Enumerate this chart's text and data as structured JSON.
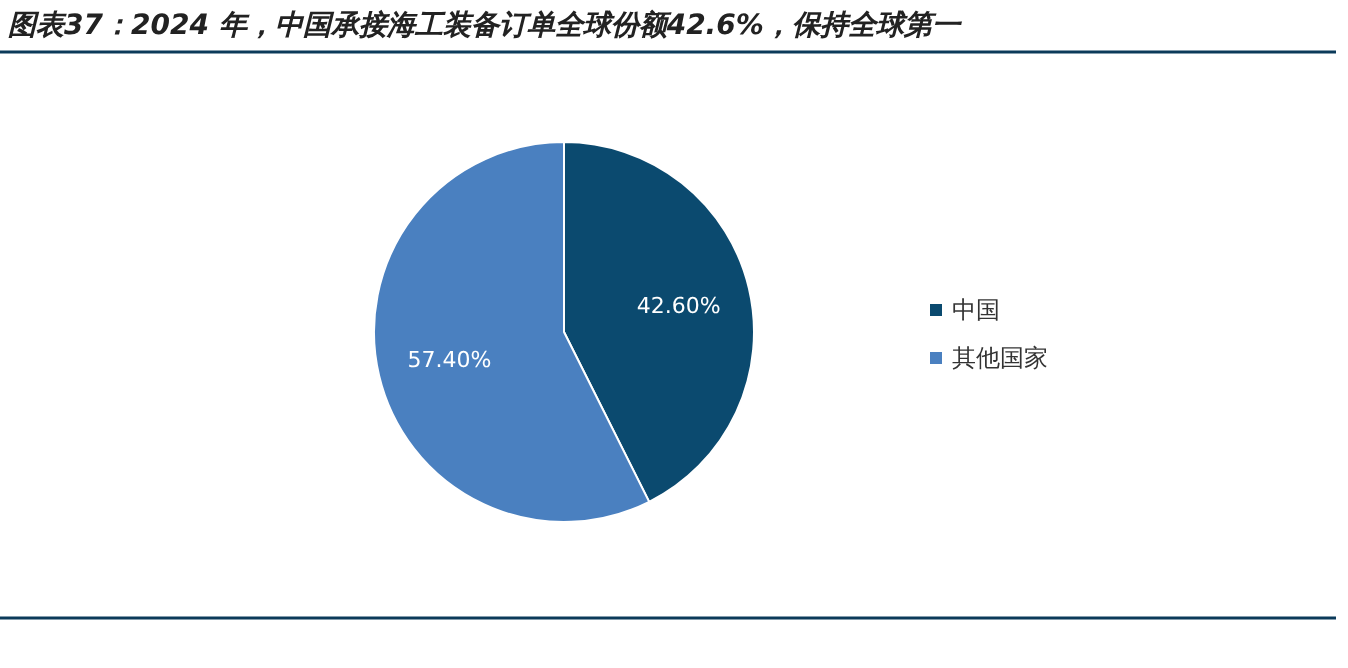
{
  "chart_data": {
    "type": "pie",
    "title": "图表37：2024 年，中国承接海工装备订单全球份额42.6%，保持全球第一",
    "categories": [
      "中国",
      "其他国家"
    ],
    "values": [
      42.6,
      57.4
    ],
    "colors": [
      "#0b4a6f",
      "#4a80c0"
    ],
    "value_labels": [
      "42.60%",
      "57.40%"
    ],
    "legend": "right"
  }
}
